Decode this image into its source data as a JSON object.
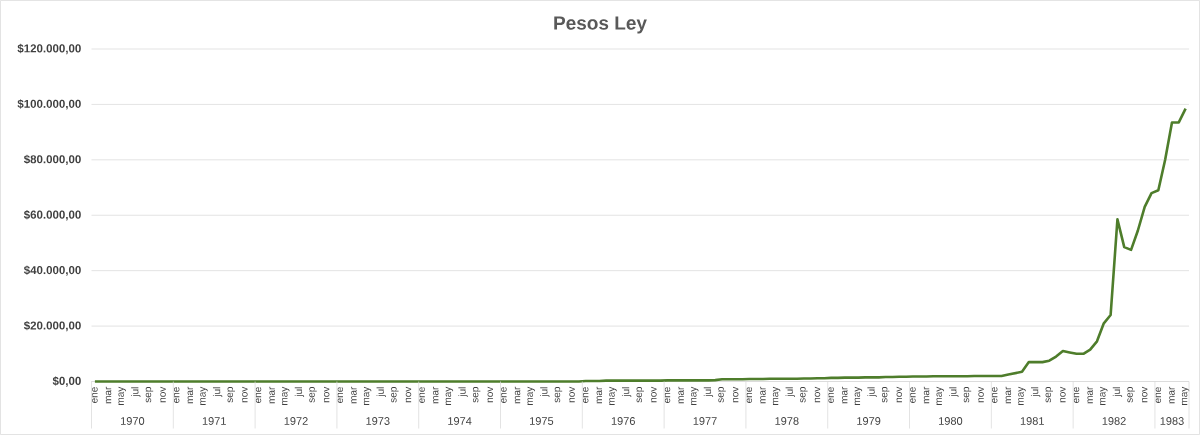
{
  "chart_data": {
    "type": "line",
    "title": "Pesos Ley",
    "categories": [
      "ene",
      null,
      "mar",
      null,
      "may",
      null,
      "jul",
      null,
      "sep",
      null,
      "nov",
      null,
      "ene",
      null,
      "mar",
      null,
      "may",
      null,
      "jul",
      null,
      "sep",
      null,
      "nov",
      null,
      "ene",
      null,
      "mar",
      null,
      "may",
      null,
      "jul",
      null,
      "sep",
      null,
      "nov",
      null,
      "ene",
      null,
      "mar",
      null,
      "may",
      null,
      "jul",
      null,
      "sep",
      null,
      "nov",
      null,
      "ene",
      null,
      "mar",
      null,
      "may",
      null,
      "jul",
      null,
      "sep",
      null,
      "nov",
      null,
      "ene",
      null,
      "mar",
      null,
      "may",
      null,
      "jul",
      null,
      "sep",
      null,
      "nov",
      null,
      "ene",
      null,
      "mar",
      null,
      "may",
      null,
      "jul",
      null,
      "sep",
      null,
      "nov",
      null,
      "ene",
      null,
      "mar",
      null,
      "may",
      null,
      "jul",
      null,
      "sep",
      null,
      "nov",
      null,
      "ene",
      null,
      "mar",
      null,
      "may",
      null,
      "jul",
      null,
      "sep",
      null,
      "nov",
      null,
      "ene",
      null,
      "mar",
      null,
      "may",
      null,
      "jul",
      null,
      "sep",
      null,
      "nov",
      null,
      "ene",
      null,
      "mar",
      null,
      "may",
      null,
      "jul",
      null,
      "sep",
      null,
      "nov",
      null,
      "ene",
      null,
      "mar",
      null,
      "may",
      null,
      "jul",
      null,
      "sep",
      null,
      "nov",
      null,
      "ene",
      null,
      "mar",
      null,
      "may",
      null,
      "jul",
      null,
      "sep",
      null,
      "nov",
      null,
      "ene",
      null,
      "mar",
      null,
      "may"
    ],
    "series": [
      {
        "color": "#4e7d2b",
        "values": [
          0,
          0,
          0,
          0,
          0,
          0,
          0,
          0,
          0,
          0,
          0,
          0,
          0,
          0,
          0,
          0,
          0,
          0,
          0,
          0,
          0,
          0,
          0,
          0,
          0,
          0,
          0,
          0,
          0,
          0,
          0,
          0,
          0,
          0,
          0,
          0,
          0,
          0,
          0,
          0,
          0,
          0,
          0,
          0,
          0,
          0,
          0,
          0,
          0,
          0,
          0,
          0,
          0,
          0,
          0,
          0,
          0,
          0,
          0,
          0,
          0,
          0,
          0,
          0,
          0,
          0,
          0,
          0,
          0,
          0,
          0,
          0,
          200,
          200,
          200,
          300,
          300,
          300,
          300,
          300,
          300,
          300,
          300,
          300,
          400,
          400,
          400,
          400,
          400,
          400,
          400,
          500,
          800,
          800,
          800,
          800,
          900,
          900,
          900,
          1000,
          1000,
          1000,
          1000,
          1000,
          1100,
          1100,
          1200,
          1200,
          1300,
          1300,
          1400,
          1400,
          1400,
          1500,
          1500,
          1500,
          1600,
          1600,
          1700,
          1700,
          1800,
          1800,
          1800,
          1900,
          1900,
          1900,
          1900,
          1900,
          1900,
          2000,
          2000,
          2000,
          2000,
          2000,
          2500,
          3000,
          3500,
          7000,
          7000,
          7000,
          7500,
          9000,
          11000,
          10500,
          10000,
          10000,
          11500,
          14500,
          21000,
          24000,
          58500,
          48500,
          47500,
          54500,
          63000,
          68000,
          69000,
          80000,
          93500,
          93500,
          98500
        ]
      }
    ],
    "ylim": [
      0,
      120000
    ],
    "yticks": [
      {
        "value": 0,
        "label": "$0,00"
      },
      {
        "value": 20000,
        "label": "$20.000,00"
      },
      {
        "value": 40000,
        "label": "$40.000,00"
      },
      {
        "value": 60000,
        "label": "$60.000,00"
      },
      {
        "value": 80000,
        "label": "$80.000,00"
      },
      {
        "value": 100000,
        "label": "$100.000,00"
      },
      {
        "value": 120000,
        "label": "$120.000,00"
      }
    ],
    "grid": "y",
    "annotations": [
      "1970",
      "1971",
      "1972",
      "1973",
      "1974",
      "1975",
      "1976",
      "1977",
      "1978",
      "1979",
      "1980",
      "1981",
      "1982",
      "1983"
    ]
  }
}
